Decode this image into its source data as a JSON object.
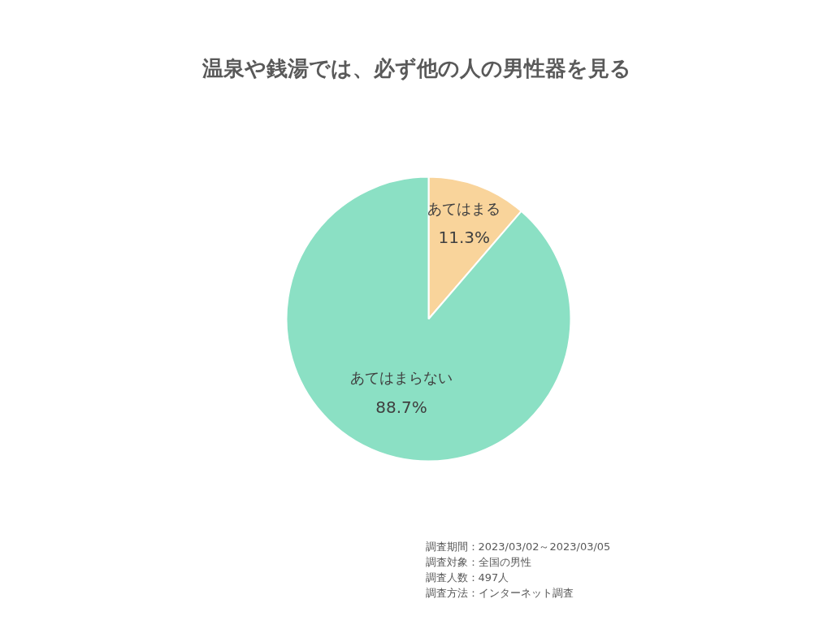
{
  "chart_data": {
    "type": "pie",
    "title": "温泉や銭湯では、必ず他の人の男性器を見る",
    "categories": [
      "あてはまる",
      "あてはまらない"
    ],
    "values": [
      11.3,
      88.7
    ],
    "colors": [
      "#f9d49b",
      "#8be0c4"
    ],
    "value_labels": [
      "11.3%",
      "88.7%"
    ],
    "annotations": [
      "調査期間：2023/03/02～2023/03/05",
      "調査対象：全国の男性",
      "調査人数：497人",
      "調査方法：インターネット調査"
    ]
  }
}
